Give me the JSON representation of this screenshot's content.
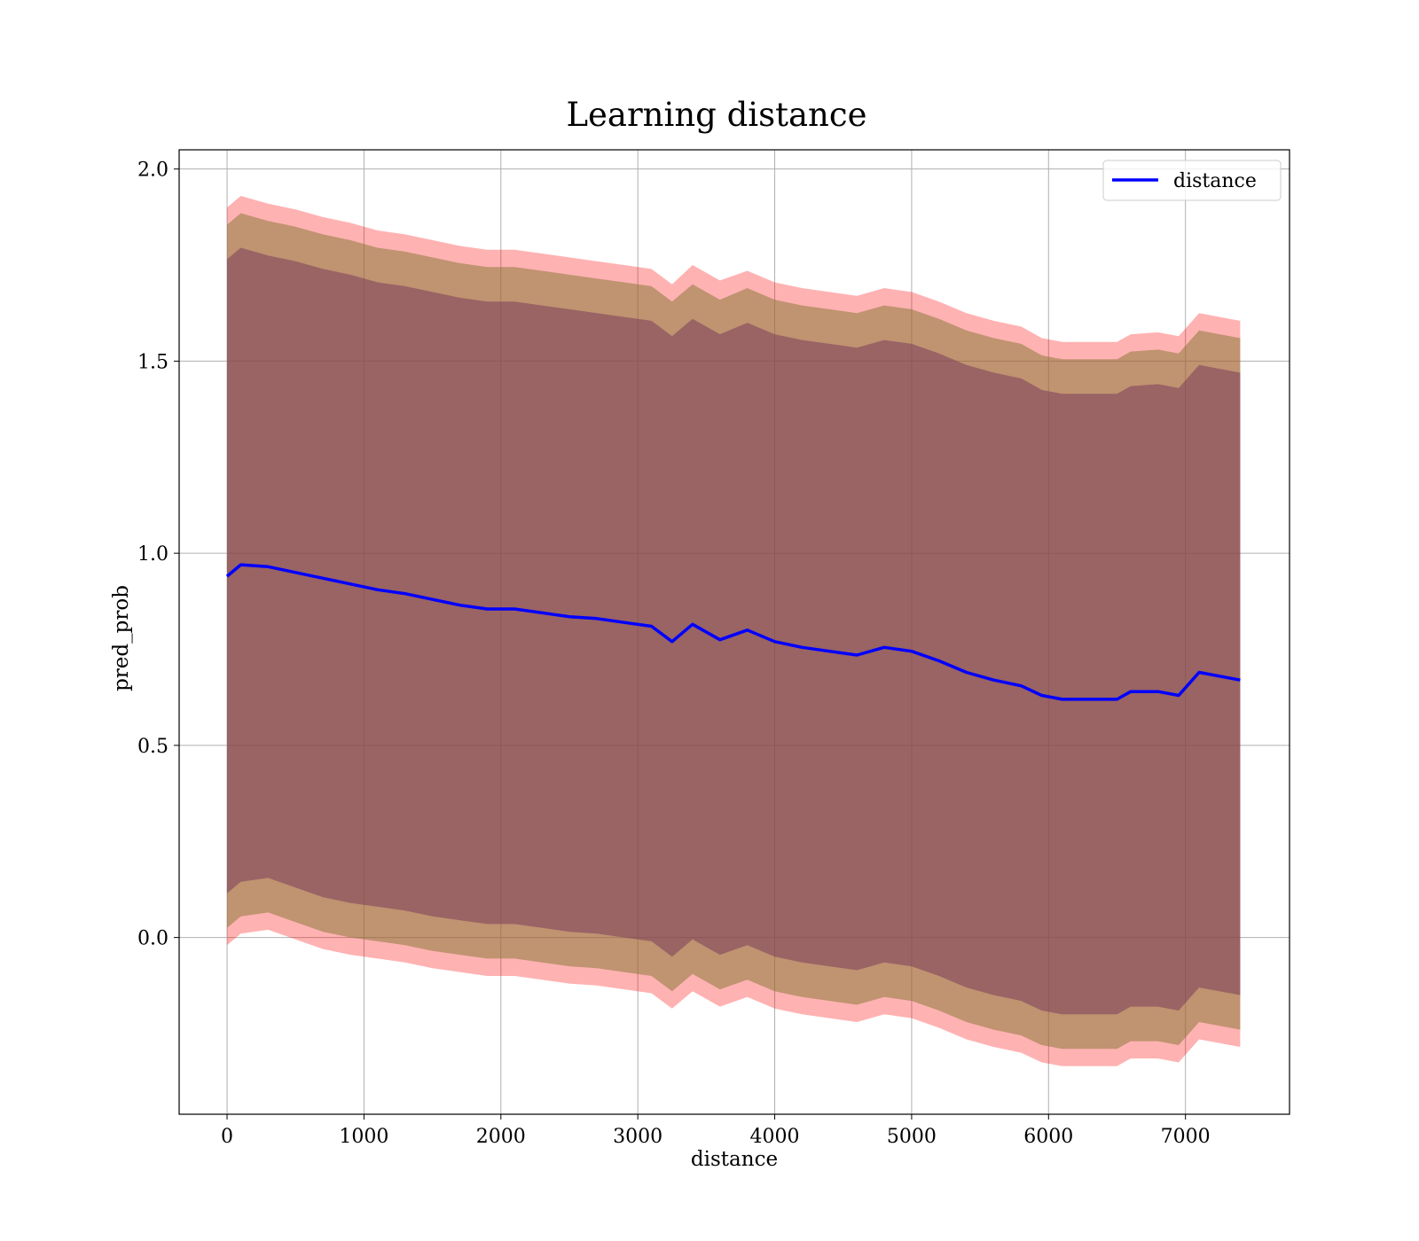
{
  "chart_data": {
    "type": "line",
    "title": "Learning distance",
    "xlabel": "distance",
    "ylabel": "pred_prob",
    "xlim": [
      -350,
      7760
    ],
    "ylim": [
      -0.46,
      2.05
    ],
    "xticks": [
      0,
      1000,
      2000,
      3000,
      4000,
      5000,
      6000,
      7000
    ],
    "yticks": [
      0.0,
      0.5,
      1.0,
      1.5,
      2.0
    ],
    "xtick_labels": [
      "0",
      "1000",
      "2000",
      "3000",
      "4000",
      "5000",
      "6000",
      "7000"
    ],
    "ytick_labels": [
      "0.0",
      "0.5",
      "1.0",
      "1.5",
      "2.0"
    ],
    "grid": true,
    "legend": {
      "position": "upper right",
      "entries": [
        "distance"
      ]
    },
    "colors": {
      "line": "#0000ff",
      "band_outer": "#ff0000",
      "band_mid": "#8c7a3c",
      "band_inner": "#7a3c5a",
      "grid": "#b0b0b0"
    },
    "series": [
      {
        "name": "distance",
        "x": [
          0,
          100,
          300,
          500,
          700,
          900,
          1100,
          1300,
          1500,
          1700,
          1900,
          2100,
          2300,
          2500,
          2700,
          2900,
          3100,
          3250,
          3400,
          3600,
          3800,
          4000,
          4200,
          4400,
          4600,
          4800,
          5000,
          5200,
          5400,
          5600,
          5800,
          5950,
          6100,
          6250,
          6400,
          6500,
          6600,
          6800,
          6950,
          7100,
          7400
        ],
        "y": [
          0.94,
          0.97,
          0.965,
          0.95,
          0.935,
          0.92,
          0.905,
          0.895,
          0.88,
          0.865,
          0.855,
          0.855,
          0.845,
          0.835,
          0.83,
          0.82,
          0.81,
          0.77,
          0.815,
          0.775,
          0.8,
          0.77,
          0.755,
          0.745,
          0.735,
          0.755,
          0.745,
          0.72,
          0.69,
          0.67,
          0.655,
          0.63,
          0.62,
          0.62,
          0.62,
          0.62,
          0.64,
          0.64,
          0.63,
          0.69,
          0.67
        ]
      }
    ],
    "bands": [
      {
        "name": "outer",
        "upper": [
          1.9,
          1.93,
          1.91,
          1.895,
          1.875,
          1.86,
          1.84,
          1.83,
          1.815,
          1.8,
          1.79,
          1.79,
          1.78,
          1.77,
          1.76,
          1.75,
          1.74,
          1.7,
          1.75,
          1.71,
          1.735,
          1.705,
          1.69,
          1.68,
          1.67,
          1.69,
          1.68,
          1.655,
          1.625,
          1.605,
          1.59,
          1.56,
          1.55,
          1.55,
          1.55,
          1.55,
          1.57,
          1.575,
          1.565,
          1.625,
          1.605
        ],
        "lower": [
          -0.02,
          0.01,
          0.02,
          -0.005,
          -0.03,
          -0.045,
          -0.055,
          -0.065,
          -0.08,
          -0.09,
          -0.1,
          -0.1,
          -0.11,
          -0.12,
          -0.125,
          -0.135,
          -0.145,
          -0.185,
          -0.14,
          -0.18,
          -0.155,
          -0.185,
          -0.2,
          -0.21,
          -0.22,
          -0.2,
          -0.21,
          -0.235,
          -0.265,
          -0.285,
          -0.3,
          -0.325,
          -0.335,
          -0.335,
          -0.335,
          -0.335,
          -0.315,
          -0.315,
          -0.325,
          -0.265,
          -0.285
        ]
      },
      {
        "name": "mid",
        "upper": [
          1.855,
          1.885,
          1.865,
          1.85,
          1.83,
          1.815,
          1.795,
          1.785,
          1.77,
          1.755,
          1.745,
          1.745,
          1.735,
          1.725,
          1.715,
          1.705,
          1.695,
          1.655,
          1.7,
          1.66,
          1.69,
          1.66,
          1.645,
          1.635,
          1.625,
          1.645,
          1.635,
          1.61,
          1.58,
          1.56,
          1.545,
          1.515,
          1.505,
          1.505,
          1.505,
          1.505,
          1.525,
          1.53,
          1.52,
          1.58,
          1.56
        ],
        "lower": [
          0.025,
          0.055,
          0.065,
          0.04,
          0.015,
          0.0,
          -0.01,
          -0.02,
          -0.035,
          -0.045,
          -0.055,
          -0.055,
          -0.065,
          -0.075,
          -0.08,
          -0.09,
          -0.1,
          -0.14,
          -0.095,
          -0.135,
          -0.11,
          -0.14,
          -0.155,
          -0.165,
          -0.175,
          -0.155,
          -0.165,
          -0.19,
          -0.22,
          -0.24,
          -0.255,
          -0.28,
          -0.29,
          -0.29,
          -0.29,
          -0.29,
          -0.27,
          -0.27,
          -0.28,
          -0.22,
          -0.24
        ]
      },
      {
        "name": "inner",
        "upper": [
          1.765,
          1.795,
          1.775,
          1.76,
          1.74,
          1.725,
          1.705,
          1.695,
          1.68,
          1.665,
          1.655,
          1.655,
          1.645,
          1.635,
          1.625,
          1.615,
          1.605,
          1.565,
          1.61,
          1.57,
          1.6,
          1.57,
          1.555,
          1.545,
          1.535,
          1.555,
          1.545,
          1.52,
          1.49,
          1.47,
          1.455,
          1.425,
          1.415,
          1.415,
          1.415,
          1.415,
          1.435,
          1.44,
          1.43,
          1.49,
          1.47
        ],
        "lower": [
          0.115,
          0.145,
          0.155,
          0.13,
          0.105,
          0.09,
          0.08,
          0.07,
          0.055,
          0.045,
          0.035,
          0.035,
          0.025,
          0.015,
          0.01,
          0.0,
          -0.01,
          -0.05,
          -0.005,
          -0.045,
          -0.02,
          -0.05,
          -0.065,
          -0.075,
          -0.085,
          -0.065,
          -0.075,
          -0.1,
          -0.13,
          -0.15,
          -0.165,
          -0.19,
          -0.2,
          -0.2,
          -0.2,
          -0.2,
          -0.18,
          -0.18,
          -0.19,
          -0.13,
          -0.15
        ]
      }
    ]
  }
}
